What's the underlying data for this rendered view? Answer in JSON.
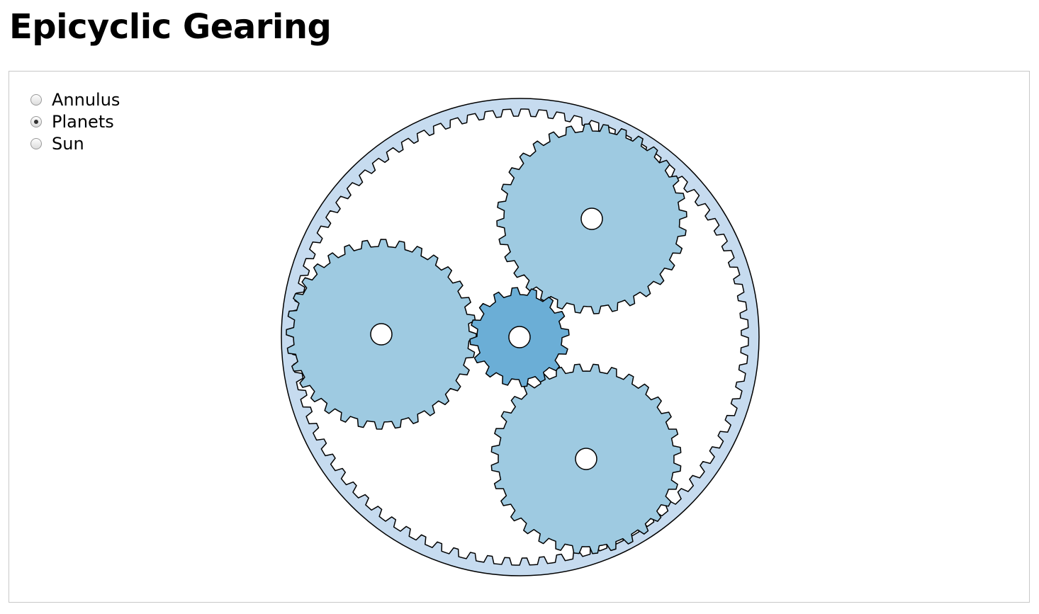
{
  "title": "Epicyclic Gearing",
  "options": [
    {
      "label": "Annulus",
      "checked": false
    },
    {
      "label": "Planets",
      "checked": true
    },
    {
      "label": "Sun",
      "checked": false
    }
  ],
  "colors": {
    "annulus": "#c6dbef",
    "planet": "#9ecae1",
    "sun": "#6baed6",
    "hole": "#ffffff",
    "stroke": "#000000"
  }
}
